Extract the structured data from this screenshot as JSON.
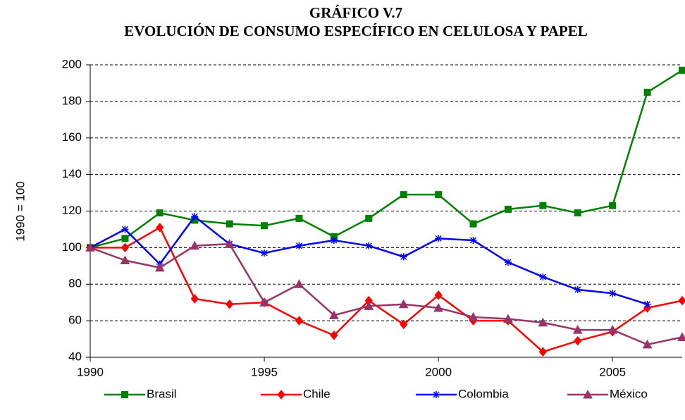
{
  "chart_data": {
    "type": "line",
    "title": "GRÁFICO V.7",
    "subtitle": "EVOLUCIÓN DE CONSUMO ESPECÍFICO EN CELULOSA Y PAPEL",
    "y_label": "1990 = 100",
    "x": [
      1990,
      1991,
      1992,
      1993,
      1994,
      1995,
      1996,
      1997,
      1998,
      1999,
      2000,
      2001,
      2002,
      2003,
      2004,
      2005,
      2006,
      2007
    ],
    "series": [
      {
        "name": "Brasil",
        "color": "#008000",
        "marker": "square",
        "values": [
          100,
          105,
          119,
          115,
          113,
          112,
          116,
          106,
          116,
          129,
          129,
          113,
          121,
          123,
          119,
          123,
          185,
          197
        ]
      },
      {
        "name": "Chile",
        "color": "#ff0000",
        "marker": "diamond",
        "values": [
          100,
          100,
          111,
          72,
          69,
          70,
          60,
          52,
          71,
          58,
          74,
          60,
          60,
          43,
          49,
          54,
          67,
          71
        ]
      },
      {
        "name": "Colombia",
        "color": "#0000ff",
        "marker": "asterisk",
        "values": [
          100,
          110,
          91,
          117,
          102,
          97,
          101,
          104,
          101,
          95,
          105,
          104,
          92,
          84,
          77,
          75,
          69,
          null
        ]
      },
      {
        "name": "México",
        "color": "#993366",
        "marker": "triangle",
        "values": [
          100,
          93,
          89,
          101,
          102,
          70,
          80,
          63,
          68,
          69,
          67,
          62,
          61,
          59,
          55,
          55,
          47,
          51
        ]
      }
    ],
    "xlim": [
      1990,
      2007
    ],
    "xticks": [
      1990,
      1995,
      2000,
      2005
    ],
    "ylim": [
      40,
      200
    ],
    "yticks": [
      40,
      60,
      80,
      100,
      120,
      140,
      160,
      180,
      200
    ],
    "grid": true,
    "legend": "bottom"
  }
}
